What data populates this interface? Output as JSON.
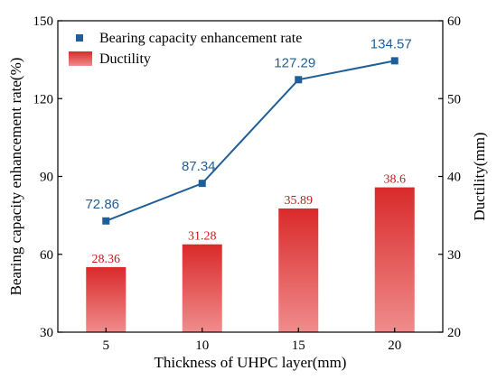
{
  "chart_data": {
    "type": "bar",
    "categories": [
      "5",
      "10",
      "15",
      "20"
    ],
    "xlabel": "Thickness of UHPC layer(mm)",
    "ylabel_left": "Bearing capacity enhancement rate(%)",
    "ylabel_right": "Ductility(mm)",
    "ylim_left": [
      30,
      150
    ],
    "yticks_left": [
      "30",
      "60",
      "90",
      "120",
      "150"
    ],
    "ylim_right": [
      20,
      60
    ],
    "yticks_right": [
      "20",
      "30",
      "40",
      "50",
      "60"
    ],
    "grid": false,
    "legend_position": "top-left",
    "series": [
      {
        "name": "Bearing capacity enhancement rate",
        "type": "line",
        "axis": "left",
        "values": [
          72.86,
          87.34,
          127.29,
          134.57
        ],
        "labels": [
          "72.86",
          "87.34",
          "127.29",
          "134.57"
        ],
        "color": "#1f5f97"
      },
      {
        "name": "Ductility",
        "type": "bar",
        "axis": "right",
        "values": [
          28.36,
          31.28,
          35.89,
          38.6
        ],
        "labels": [
          "28.36",
          "31.28",
          "35.89",
          "38.6"
        ],
        "color_top": "#d92a2a",
        "color_bottom": "#f08c8c",
        "label_color": "#c81818"
      }
    ]
  }
}
